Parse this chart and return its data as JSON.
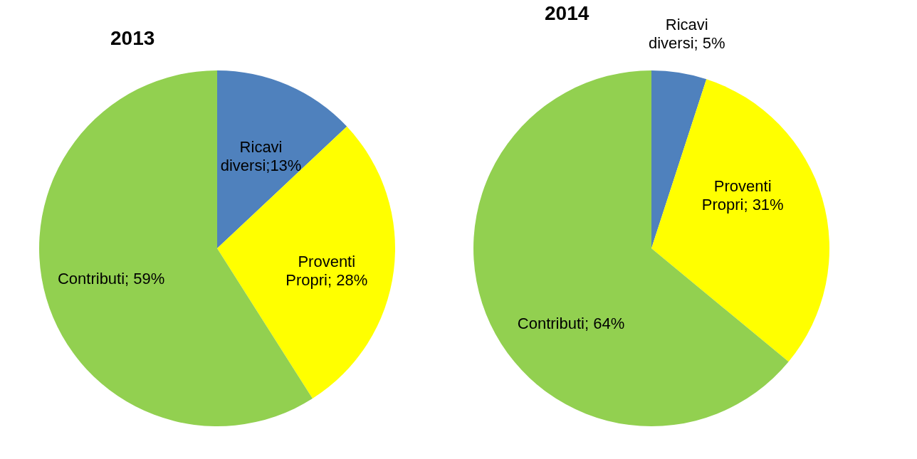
{
  "chart_data": [
    {
      "type": "pie",
      "title": "2013",
      "categories": [
        "Ricavi diversi",
        "Proventi Propri",
        "Contributi"
      ],
      "values": [
        13,
        28,
        59
      ],
      "colors": [
        "#4f81bd",
        "#ffff00",
        "#92d050"
      ],
      "value_labels": [
        ";13%",
        "; 28%",
        "; 59%"
      ],
      "legend": false
    },
    {
      "type": "pie",
      "title": "2014",
      "categories": [
        "Ricavi diversi",
        "Proventi Propri",
        "Contributi"
      ],
      "values": [
        5,
        31,
        64
      ],
      "colors": [
        "#4f81bd",
        "#ffff00",
        "#92d050"
      ],
      "value_labels": [
        "; 5%",
        "; 31%",
        "; 64%"
      ],
      "legend": false
    }
  ]
}
